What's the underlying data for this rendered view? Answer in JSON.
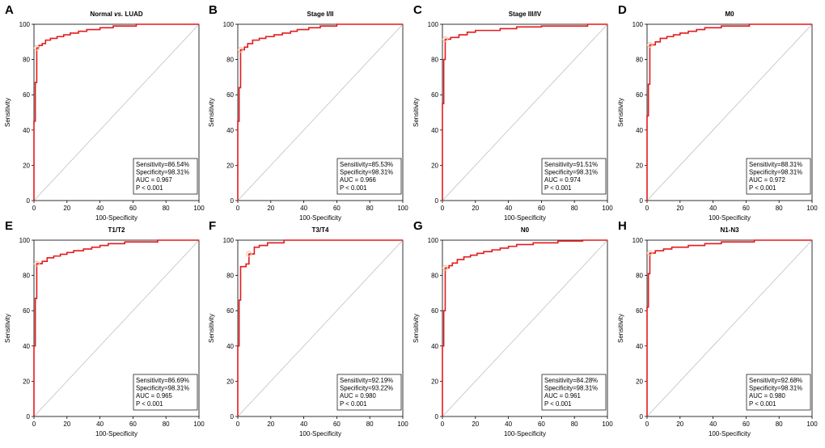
{
  "figure": {
    "axis": {
      "xlabel": "100-Specificity",
      "ylabel": "Sensitivity",
      "xlim": [
        0,
        100
      ],
      "ylim": [
        0,
        100
      ],
      "ticks": [
        0,
        20,
        40,
        60,
        80,
        100
      ]
    },
    "colors": {
      "curve": "#e41a1c",
      "diagonal": "#b8b8b8",
      "marker": "#f2c7a5",
      "axis": "#000000"
    }
  },
  "chart_data": [
    {
      "type": "line",
      "panel_letter": "A",
      "title": "Normal vs. LUAD",
      "title_plain": "Normal ",
      "title_italic": "vs.",
      "title_rest": " LUAD",
      "xlabel": "100-Specificity",
      "ylabel": "Sensitivity",
      "xlim": [
        0,
        100
      ],
      "ylim": [
        0,
        100
      ],
      "legend": [
        "Sensitivity=86.54%",
        "Specificity=98.31%",
        "AUC = 0.967",
        "P < 0.001"
      ],
      "legend_position": "bottom-right",
      "cutoff_point": [
        1.69,
        86.54
      ],
      "roc": [
        [
          0,
          0
        ],
        [
          0,
          45
        ],
        [
          0.8,
          45
        ],
        [
          0.8,
          67
        ],
        [
          1.69,
          67
        ],
        [
          1.69,
          86.54
        ],
        [
          3,
          86.54
        ],
        [
          3,
          88
        ],
        [
          5,
          88
        ],
        [
          5,
          89
        ],
        [
          7,
          89
        ],
        [
          7,
          91
        ],
        [
          10,
          91
        ],
        [
          10,
          92
        ],
        [
          14,
          92
        ],
        [
          14,
          93
        ],
        [
          18,
          93
        ],
        [
          18,
          94
        ],
        [
          22,
          94
        ],
        [
          22,
          95
        ],
        [
          27,
          95
        ],
        [
          27,
          96
        ],
        [
          32,
          96
        ],
        [
          32,
          97
        ],
        [
          40,
          97
        ],
        [
          40,
          98
        ],
        [
          48,
          98
        ],
        [
          48,
          99
        ],
        [
          62,
          99
        ],
        [
          62,
          100
        ],
        [
          100,
          100
        ]
      ]
    },
    {
      "type": "line",
      "panel_letter": "B",
      "title": "Stage I/II",
      "title_plain": "Stage I/II",
      "title_italic": "",
      "title_rest": "",
      "xlabel": "100-Specificity",
      "ylabel": "Sensitivity",
      "xlim": [
        0,
        100
      ],
      "ylim": [
        0,
        100
      ],
      "legend": [
        "Sensitivity=85.53%",
        "Specificity=98.31%",
        "AUC = 0.966",
        "P < 0.001"
      ],
      "legend_position": "bottom-right",
      "cutoff_point": [
        1.69,
        85.53
      ],
      "roc": [
        [
          0,
          0
        ],
        [
          0,
          45
        ],
        [
          0.8,
          45
        ],
        [
          0.8,
          64
        ],
        [
          1.69,
          64
        ],
        [
          1.69,
          85.53
        ],
        [
          4,
          85.53
        ],
        [
          4,
          87
        ],
        [
          6,
          87
        ],
        [
          6,
          89
        ],
        [
          9,
          89
        ],
        [
          9,
          91
        ],
        [
          13,
          91
        ],
        [
          13,
          92
        ],
        [
          17,
          92
        ],
        [
          17,
          93
        ],
        [
          22,
          93
        ],
        [
          22,
          94
        ],
        [
          27,
          94
        ],
        [
          27,
          95
        ],
        [
          32,
          95
        ],
        [
          32,
          96
        ],
        [
          36,
          96
        ],
        [
          36,
          97
        ],
        [
          43,
          97
        ],
        [
          43,
          98
        ],
        [
          50,
          98
        ],
        [
          50,
          99
        ],
        [
          60,
          99
        ],
        [
          60,
          100
        ],
        [
          100,
          100
        ]
      ]
    },
    {
      "type": "line",
      "panel_letter": "C",
      "title": "Stage III/IV",
      "title_plain": "Stage III/IV",
      "title_italic": "",
      "title_rest": "",
      "xlabel": "100-Specificity",
      "ylabel": "Sensitivity",
      "xlim": [
        0,
        100
      ],
      "ylim": [
        0,
        100
      ],
      "legend": [
        "Sensitivity=91.51%",
        "Specificity=98.31%",
        "AUC = 0.974",
        "P < 0.001"
      ],
      "legend_position": "bottom-right",
      "cutoff_point": [
        1.69,
        91.51
      ],
      "roc": [
        [
          0,
          0
        ],
        [
          0,
          55
        ],
        [
          0.8,
          55
        ],
        [
          0.8,
          80
        ],
        [
          1.69,
          80
        ],
        [
          1.69,
          91.51
        ],
        [
          5,
          91.51
        ],
        [
          5,
          92.5
        ],
        [
          10,
          92.5
        ],
        [
          10,
          94
        ],
        [
          15,
          94
        ],
        [
          15,
          95.5
        ],
        [
          20,
          95.5
        ],
        [
          20,
          96.5
        ],
        [
          35,
          96.5
        ],
        [
          35,
          97.5
        ],
        [
          45,
          97.5
        ],
        [
          45,
          98.5
        ],
        [
          60,
          98.5
        ],
        [
          60,
          99
        ],
        [
          88,
          99
        ],
        [
          88,
          100
        ],
        [
          100,
          100
        ]
      ]
    },
    {
      "type": "line",
      "panel_letter": "D",
      "title": "M0",
      "title_plain": "M0",
      "title_italic": "",
      "title_rest": "",
      "xlabel": "100-Specificity",
      "ylabel": "Sensitivity",
      "xlim": [
        0,
        100
      ],
      "ylim": [
        0,
        100
      ],
      "legend": [
        "Sensitivity=88.31%",
        "Specificity=98.31%",
        "AUC = 0.972",
        "P < 0.001"
      ],
      "legend_position": "bottom-right",
      "cutoff_point": [
        1.69,
        88.31
      ],
      "roc": [
        [
          0,
          0
        ],
        [
          0,
          48
        ],
        [
          0.8,
          48
        ],
        [
          0.8,
          66
        ],
        [
          1.69,
          66
        ],
        [
          1.69,
          88.31
        ],
        [
          5,
          88.31
        ],
        [
          5,
          90
        ],
        [
          8,
          90
        ],
        [
          8,
          92
        ],
        [
          12,
          92
        ],
        [
          12,
          93
        ],
        [
          16,
          93
        ],
        [
          16,
          94
        ],
        [
          20,
          94
        ],
        [
          20,
          95
        ],
        [
          25,
          95
        ],
        [
          25,
          96
        ],
        [
          30,
          96
        ],
        [
          30,
          97
        ],
        [
          35,
          97
        ],
        [
          35,
          98
        ],
        [
          45,
          98
        ],
        [
          45,
          99
        ],
        [
          62,
          99
        ],
        [
          62,
          100
        ],
        [
          100,
          100
        ]
      ]
    },
    {
      "type": "line",
      "panel_letter": "E",
      "title": "T1/T2",
      "title_plain": "T1/T2",
      "title_italic": "",
      "title_rest": "",
      "xlabel": "100-Specificity",
      "ylabel": "Sensitivity",
      "xlim": [
        0,
        100
      ],
      "ylim": [
        0,
        100
      ],
      "legend": [
        "Sensitivity=86.69%",
        "Specificity=98.31%",
        "AUC = 0.965",
        "P < 0.001"
      ],
      "legend_position": "bottom-right",
      "cutoff_point": [
        1.69,
        86.69
      ],
      "roc": [
        [
          0,
          0
        ],
        [
          0,
          40
        ],
        [
          0.8,
          40
        ],
        [
          0.8,
          67
        ],
        [
          1.69,
          67
        ],
        [
          1.69,
          86.69
        ],
        [
          5,
          86.69
        ],
        [
          5,
          88
        ],
        [
          8,
          88
        ],
        [
          8,
          90
        ],
        [
          12,
          90
        ],
        [
          12,
          91
        ],
        [
          16,
          91
        ],
        [
          16,
          92
        ],
        [
          20,
          92
        ],
        [
          20,
          93
        ],
        [
          24,
          93
        ],
        [
          24,
          94
        ],
        [
          30,
          94
        ],
        [
          30,
          95
        ],
        [
          35,
          95
        ],
        [
          35,
          96
        ],
        [
          40,
          96
        ],
        [
          40,
          97
        ],
        [
          45,
          97
        ],
        [
          45,
          98
        ],
        [
          55,
          98
        ],
        [
          55,
          99
        ],
        [
          75,
          99
        ],
        [
          75,
          100
        ],
        [
          100,
          100
        ]
      ]
    },
    {
      "type": "line",
      "panel_letter": "F",
      "title": "T3/T4",
      "title_plain": "T3/T4",
      "title_italic": "",
      "title_rest": "",
      "xlabel": "100-Specificity",
      "ylabel": "Sensitivity",
      "xlim": [
        0,
        100
      ],
      "ylim": [
        0,
        100
      ],
      "legend": [
        "Sensitivity=92.19%",
        "Specificity=93.22%",
        "AUC = 0.980",
        "P < 0.001"
      ],
      "legend_position": "bottom-right",
      "cutoff_point": [
        6.78,
        92.19
      ],
      "roc": [
        [
          0,
          0
        ],
        [
          0,
          40
        ],
        [
          0.8,
          40
        ],
        [
          0.8,
          66
        ],
        [
          1.69,
          66
        ],
        [
          1.69,
          85
        ],
        [
          5,
          85
        ],
        [
          5,
          86.5
        ],
        [
          6.78,
          86.5
        ],
        [
          6.78,
          92.19
        ],
        [
          10,
          92.19
        ],
        [
          10,
          96
        ],
        [
          13,
          96
        ],
        [
          13,
          97
        ],
        [
          18,
          97
        ],
        [
          18,
          98.5
        ],
        [
          28,
          98.5
        ],
        [
          28,
          100
        ],
        [
          100,
          100
        ]
      ]
    },
    {
      "type": "line",
      "panel_letter": "G",
      "title": "N0",
      "title_plain": "N0",
      "title_italic": "",
      "title_rest": "",
      "xlabel": "100-Specificity",
      "ylabel": "Sensitivity",
      "xlim": [
        0,
        100
      ],
      "ylim": [
        0,
        100
      ],
      "legend": [
        "Sensitivity=84.28%",
        "Specificity=98.31%",
        "AUC = 0.961",
        "P < 0.001"
      ],
      "legend_position": "bottom-right",
      "cutoff_point": [
        1.69,
        84.28
      ],
      "roc": [
        [
          0,
          0
        ],
        [
          0,
          40
        ],
        [
          0.8,
          40
        ],
        [
          0.8,
          60
        ],
        [
          1.69,
          60
        ],
        [
          1.69,
          84.28
        ],
        [
          4,
          84.28
        ],
        [
          4,
          85.5
        ],
        [
          6,
          85.5
        ],
        [
          6,
          87
        ],
        [
          9,
          87
        ],
        [
          9,
          89
        ],
        [
          13,
          89
        ],
        [
          13,
          90.5
        ],
        [
          17,
          90.5
        ],
        [
          17,
          91.5
        ],
        [
          21,
          91.5
        ],
        [
          21,
          92.5
        ],
        [
          25,
          92.5
        ],
        [
          25,
          93.5
        ],
        [
          30,
          93.5
        ],
        [
          30,
          94.5
        ],
        [
          35,
          94.5
        ],
        [
          35,
          95.5
        ],
        [
          40,
          95.5
        ],
        [
          40,
          96.5
        ],
        [
          45,
          96.5
        ],
        [
          45,
          97.5
        ],
        [
          55,
          97.5
        ],
        [
          55,
          98.5
        ],
        [
          70,
          98.5
        ],
        [
          70,
          99.5
        ],
        [
          85,
          99.5
        ],
        [
          85,
          100
        ],
        [
          100,
          100
        ]
      ]
    },
    {
      "type": "line",
      "panel_letter": "H",
      "title": "N1-N3",
      "title_plain": "N1-N3",
      "title_italic": "",
      "title_rest": "",
      "xlabel": "100-Specificity",
      "ylabel": "Sensitivity",
      "xlim": [
        0,
        100
      ],
      "ylim": [
        0,
        100
      ],
      "legend": [
        "Sensitivity=92.68%",
        "Specificity=98.31%",
        "AUC = 0.980",
        "P < 0.001"
      ],
      "legend_position": "bottom-right",
      "cutoff_point": [
        1.69,
        92.68
      ],
      "roc": [
        [
          0,
          0
        ],
        [
          0,
          62
        ],
        [
          0.8,
          62
        ],
        [
          0.8,
          81
        ],
        [
          1.69,
          81
        ],
        [
          1.69,
          92.68
        ],
        [
          5,
          92.68
        ],
        [
          5,
          94
        ],
        [
          10,
          94
        ],
        [
          10,
          95
        ],
        [
          15,
          95
        ],
        [
          15,
          96
        ],
        [
          25,
          96
        ],
        [
          25,
          97
        ],
        [
          35,
          97
        ],
        [
          35,
          98
        ],
        [
          45,
          98
        ],
        [
          45,
          99
        ],
        [
          65,
          99
        ],
        [
          65,
          100
        ],
        [
          100,
          100
        ]
      ]
    }
  ]
}
